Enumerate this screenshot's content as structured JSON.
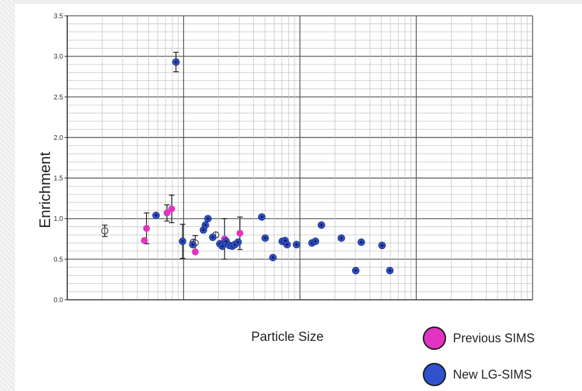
{
  "chart_data": {
    "type": "scatter",
    "xlabel": "Particle Size",
    "ylabel": "Enrichment",
    "ylim": [
      0,
      3.5
    ],
    "yticks": [
      "0.0",
      "0.5",
      "1.0",
      "1.5",
      "2.0",
      "2.5",
      "3.0",
      "3.5"
    ],
    "x_scale": "log",
    "x_tick_labels_shown": false,
    "grid": true,
    "legend_placement": "bottom-right",
    "series": [
      {
        "name": "Previous SIMS",
        "color": "#e333c0",
        "points": [
          {
            "x": 0.46,
            "y": 0.73
          },
          {
            "x": 0.48,
            "y": 0.88,
            "err": 0.19
          },
          {
            "x": 0.72,
            "y": 1.07,
            "err": 0.1
          },
          {
            "x": 0.79,
            "y": 1.12,
            "err": 0.17
          },
          {
            "x": 1.26,
            "y": 0.59
          },
          {
            "x": 2.25,
            "y": 0.75,
            "err": 0.25
          },
          {
            "x": 3.05,
            "y": 0.82,
            "err": 0.2
          }
        ]
      },
      {
        "name": "New LG-SIMS",
        "color": "#2f52cc",
        "points": [
          {
            "x": 0.58,
            "y": 1.04
          },
          {
            "x": 0.86,
            "y": 2.93,
            "err": 0.12
          },
          {
            "x": 0.98,
            "y": 0.72,
            "err": 0.21
          },
          {
            "x": 1.2,
            "y": 0.68
          },
          {
            "x": 1.48,
            "y": 0.86
          },
          {
            "x": 1.54,
            "y": 0.92
          },
          {
            "x": 1.62,
            "y": 1.0
          },
          {
            "x": 1.78,
            "y": 0.77
          },
          {
            "x": 2.05,
            "y": 0.69
          },
          {
            "x": 2.15,
            "y": 0.66
          },
          {
            "x": 2.32,
            "y": 0.72
          },
          {
            "x": 2.48,
            "y": 0.67
          },
          {
            "x": 2.62,
            "y": 0.66
          },
          {
            "x": 2.76,
            "y": 0.68
          },
          {
            "x": 2.94,
            "y": 0.71
          },
          {
            "x": 4.7,
            "y": 1.02
          },
          {
            "x": 5.03,
            "y": 0.76
          },
          {
            "x": 5.86,
            "y": 0.52
          },
          {
            "x": 7.05,
            "y": 0.72
          },
          {
            "x": 7.45,
            "y": 0.73
          },
          {
            "x": 7.75,
            "y": 0.68
          },
          {
            "x": 9.35,
            "y": 0.68
          },
          {
            "x": 12.7,
            "y": 0.7
          },
          {
            "x": 13.6,
            "y": 0.72
          },
          {
            "x": 15.3,
            "y": 0.92
          },
          {
            "x": 22.7,
            "y": 0.76
          },
          {
            "x": 30.2,
            "y": 0.36
          },
          {
            "x": 33.7,
            "y": 0.71
          },
          {
            "x": 50.8,
            "y": 0.67
          },
          {
            "x": 59.3,
            "y": 0.36
          }
        ]
      },
      {
        "name": "",
        "color": "#ffffff",
        "points": [
          {
            "x": 0.21,
            "y": 0.85,
            "err": 0.07
          },
          {
            "x": 1.21,
            "y": 0.71
          },
          {
            "x": 1.26,
            "y": 0.7,
            "err": 0.09
          },
          {
            "x": 1.89,
            "y": 0.8
          }
        ]
      }
    ]
  },
  "legend": {
    "items": [
      {
        "label": "Previous SIMS",
        "color": "#e333c0"
      },
      {
        "label": "New LG-SIMS",
        "color": "#2f52cc"
      }
    ]
  }
}
